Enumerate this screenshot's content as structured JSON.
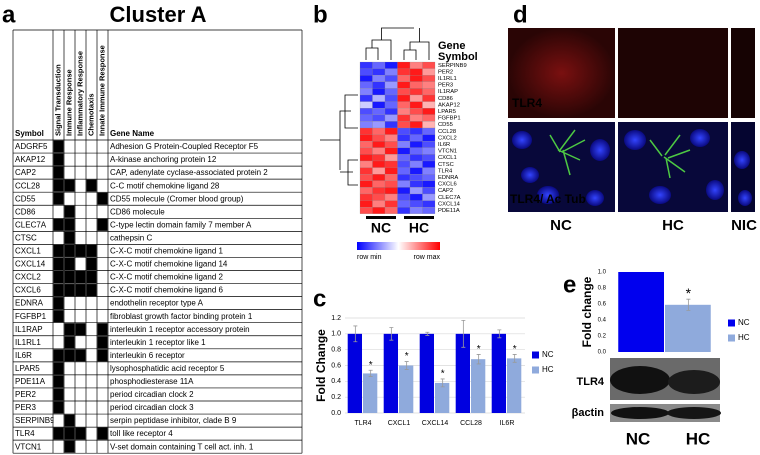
{
  "panel_labels": [
    "a",
    "b",
    "c",
    "d",
    "e"
  ],
  "table": {
    "title": "Cluster A",
    "columns": [
      "Symbol",
      "Signal Transduction",
      "Immune Response",
      "Inflammatory Response",
      "Chemotaxis",
      "Innate Immune Response",
      "Gene Name"
    ],
    "rows": [
      {
        "symbol": "ADGRF5",
        "membership": [
          1,
          0,
          0,
          0,
          0
        ],
        "name": "Adhesion G Protein-Coupled Receptor F5"
      },
      {
        "symbol": "AKAP12",
        "membership": [
          1,
          0,
          0,
          0,
          0
        ],
        "name": "A-kinase anchoring protein 12"
      },
      {
        "symbol": "CAP2",
        "membership": [
          1,
          0,
          0,
          0,
          0
        ],
        "name": "CAP, adenylate cyclase-associated protein 2"
      },
      {
        "symbol": "CCL28",
        "membership": [
          1,
          1,
          0,
          1,
          0
        ],
        "name": "C-C motif chemokine ligand 28"
      },
      {
        "symbol": "CD55",
        "membership": [
          1,
          0,
          0,
          0,
          1
        ],
        "name": "CD55 molecule (Cromer blood group)"
      },
      {
        "symbol": "CD86",
        "membership": [
          0,
          1,
          0,
          0,
          0
        ],
        "name": "CD86 molecule"
      },
      {
        "symbol": "CLEC7A",
        "membership": [
          1,
          1,
          0,
          0,
          1
        ],
        "name": "C-type lectin domain family 7 member A"
      },
      {
        "symbol": "CTSC",
        "membership": [
          0,
          1,
          0,
          0,
          0
        ],
        "name": "cathepsin C"
      },
      {
        "symbol": "CXCL1",
        "membership": [
          1,
          1,
          1,
          1,
          0
        ],
        "name": "C-X-C motif chemokine ligand 1"
      },
      {
        "symbol": "CXCL14",
        "membership": [
          1,
          1,
          0,
          1,
          0
        ],
        "name": "C-X-C motif chemokine ligand 14"
      },
      {
        "symbol": "CXCL2",
        "membership": [
          1,
          1,
          1,
          1,
          0
        ],
        "name": "C-X-C motif chemokine ligand 2"
      },
      {
        "symbol": "CXCL6",
        "membership": [
          1,
          1,
          1,
          1,
          0
        ],
        "name": "C-X-C motif chemokine ligand 6"
      },
      {
        "symbol": "EDNRA",
        "membership": [
          1,
          0,
          0,
          0,
          0
        ],
        "name": "endothelin receptor type A"
      },
      {
        "symbol": "FGFBP1",
        "membership": [
          1,
          0,
          0,
          0,
          0
        ],
        "name": "fibroblast growth factor binding protein 1"
      },
      {
        "symbol": "IL1RAP",
        "membership": [
          0,
          1,
          1,
          0,
          1
        ],
        "name": "interleukin 1 receptor accessory protein"
      },
      {
        "symbol": "IL1RL1",
        "membership": [
          0,
          1,
          0,
          0,
          1
        ],
        "name": "interleukin 1 receptor like 1"
      },
      {
        "symbol": "IL6R",
        "membership": [
          1,
          1,
          1,
          0,
          1
        ],
        "name": "interleukin 6 receptor"
      },
      {
        "symbol": "LPAR5",
        "membership": [
          1,
          0,
          0,
          0,
          0
        ],
        "name": "lysophosphatidic acid receptor 5"
      },
      {
        "symbol": "PDE11A",
        "membership": [
          1,
          0,
          0,
          0,
          0
        ],
        "name": "phosphodiesterase 11A"
      },
      {
        "symbol": "PER2",
        "membership": [
          1,
          0,
          0,
          0,
          0
        ],
        "name": "period circadian clock 2"
      },
      {
        "symbol": "PER3",
        "membership": [
          1,
          0,
          0,
          0,
          0
        ],
        "name": "period circadian clock 3"
      },
      {
        "symbol": "SERPINB9",
        "membership": [
          0,
          1,
          0,
          0,
          0
        ],
        "name": "serpin peptidase inhibitor, clade B 9"
      },
      {
        "symbol": "TLR4",
        "membership": [
          1,
          1,
          1,
          0,
          1
        ],
        "name": "toll like receptor 4"
      },
      {
        "symbol": "VTCN1",
        "membership": [
          0,
          1,
          0,
          0,
          0
        ],
        "name": "V-set domain containing T cell act. inh. 1"
      }
    ]
  },
  "heatmap": {
    "title_lines": [
      "Gene",
      "Symbol"
    ],
    "groups": [
      "NC",
      "HC"
    ],
    "scale_labels": [
      "row min",
      "row max"
    ],
    "genes": [
      "SERPINB9",
      "PER2",
      "IL1RL1",
      "PER3",
      "IL1RAP",
      "CD86",
      "AKAP12",
      "LPAR5",
      "FGFBP1",
      "CD55",
      "CCL28",
      "CXCL2",
      "IL6R",
      "VTCN1",
      "CXCL1",
      "CTSC",
      "TLR4",
      "EDNRA",
      "CXCL6",
      "CAP2",
      "CLEC7A",
      "CXCL14",
      "PDE11A"
    ],
    "values": [
      [
        -0.8,
        -0.6,
        -0.9,
        0.9,
        0.5,
        0.7
      ],
      [
        -0.7,
        -0.8,
        -0.5,
        0.8,
        0.9,
        0.4
      ],
      [
        -0.9,
        -0.5,
        -0.7,
        0.6,
        0.9,
        0.7
      ],
      [
        -0.6,
        -0.8,
        -0.4,
        0.9,
        0.6,
        0.5
      ],
      [
        -0.5,
        -0.9,
        -0.6,
        0.7,
        0.8,
        0.6
      ],
      [
        -0.8,
        -0.3,
        -0.7,
        0.9,
        0.4,
        0.8
      ],
      [
        -0.2,
        -0.9,
        -0.6,
        0.6,
        0.9,
        0.3
      ],
      [
        -0.7,
        -0.6,
        -0.8,
        0.5,
        0.7,
        0.9
      ],
      [
        -0.6,
        -0.7,
        -0.4,
        0.8,
        0.5,
        0.6
      ],
      [
        -0.5,
        -0.4,
        -0.8,
        0.7,
        0.9,
        0.3
      ],
      [
        0.8,
        0.6,
        0.9,
        -0.7,
        -0.8,
        -0.6
      ],
      [
        0.9,
        0.7,
        0.5,
        -0.8,
        -0.6,
        -0.9
      ],
      [
        0.6,
        0.9,
        0.7,
        -0.5,
        -0.9,
        -0.7
      ],
      [
        0.7,
        0.5,
        0.9,
        -0.9,
        -0.6,
        -0.5
      ],
      [
        0.9,
        0.8,
        0.4,
        -0.6,
        -0.8,
        -0.7
      ],
      [
        0.5,
        0.9,
        0.8,
        -0.7,
        -0.5,
        -0.9
      ],
      [
        0.8,
        0.4,
        0.9,
        -0.6,
        -0.9,
        -0.5
      ],
      [
        0.7,
        0.9,
        0.6,
        -0.8,
        -0.7,
        -0.6
      ],
      [
        0.9,
        0.6,
        0.7,
        -0.5,
        -0.8,
        -0.9
      ],
      [
        0.6,
        0.8,
        0.9,
        -0.9,
        -0.4,
        -0.7
      ],
      [
        0.8,
        0.7,
        0.5,
        -0.7,
        -0.9,
        -0.4
      ],
      [
        0.9,
        0.5,
        0.8,
        -0.6,
        -0.7,
        -0.8
      ],
      [
        0.7,
        0.9,
        0.6,
        -0.8,
        -0.5,
        -0.6
      ]
    ],
    "vlim": [
      -1,
      1
    ]
  },
  "micrographs": {
    "stain_top": "TLR4",
    "stain_bottom": [
      "TLR4/",
      "Ac Tub"
    ],
    "columns": [
      "NC",
      "HC",
      "NIC"
    ]
  },
  "blot": {
    "bands": [
      "TLR4",
      "βactin"
    ],
    "lanes": [
      "NC",
      "HC"
    ]
  },
  "chart_data": [
    {
      "type": "bar",
      "ylabel": "Fold Change",
      "categories": [
        "TLR4",
        "CXCL1",
        "CXCL14",
        "CCL28",
        "IL6R"
      ],
      "series": [
        {
          "name": "NC",
          "color": "#0000e0",
          "values": [
            1,
            1,
            1,
            1,
            1
          ],
          "errors": [
            0.1,
            0.08,
            0.02,
            0.17,
            0.05
          ]
        },
        {
          "name": "HC",
          "color": "#8faadc",
          "values": [
            0.5,
            0.6,
            0.38,
            0.68,
            0.69
          ],
          "errors": [
            0.04,
            0.05,
            0.05,
            0.06,
            0.05
          ],
          "annotations": [
            "*",
            "*",
            "*",
            "*",
            "*"
          ]
        }
      ],
      "ylim": [
        0,
        1.2
      ],
      "yticks": [
        {
          "value": 0,
          "label": "0.0"
        },
        {
          "value": 0.2,
          "label": "0.2"
        },
        {
          "value": 0.4,
          "label": "0.4"
        },
        {
          "value": 0.6,
          "label": "0.6"
        },
        {
          "value": 0.8,
          "label": "0.8"
        },
        {
          "value": 1,
          "label": "1.0"
        },
        {
          "value": 1.2,
          "label": "1.2"
        }
      ],
      "grid": true,
      "legend": "right"
    },
    {
      "type": "bar",
      "ylabel": "Fold change",
      "series": [
        {
          "name": "NC",
          "color": "#0000ee",
          "values": [
            1
          ]
        },
        {
          "name": "HC",
          "color": "#8faadc",
          "values": [
            0.59
          ],
          "errors": [
            0.07
          ],
          "annotations": [
            "*"
          ]
        }
      ],
      "ylim": [
        0,
        1
      ],
      "yticks": [
        {
          "value": 0,
          "label": "0.0"
        },
        {
          "value": 0.2,
          "label": "0.2"
        },
        {
          "value": 0.4,
          "label": "0.4"
        },
        {
          "value": 0.6,
          "label": "0.6"
        },
        {
          "value": 0.8,
          "label": "0.8"
        },
        {
          "value": 1,
          "label": "1.0"
        }
      ],
      "grid": false,
      "legend": "right"
    }
  ]
}
